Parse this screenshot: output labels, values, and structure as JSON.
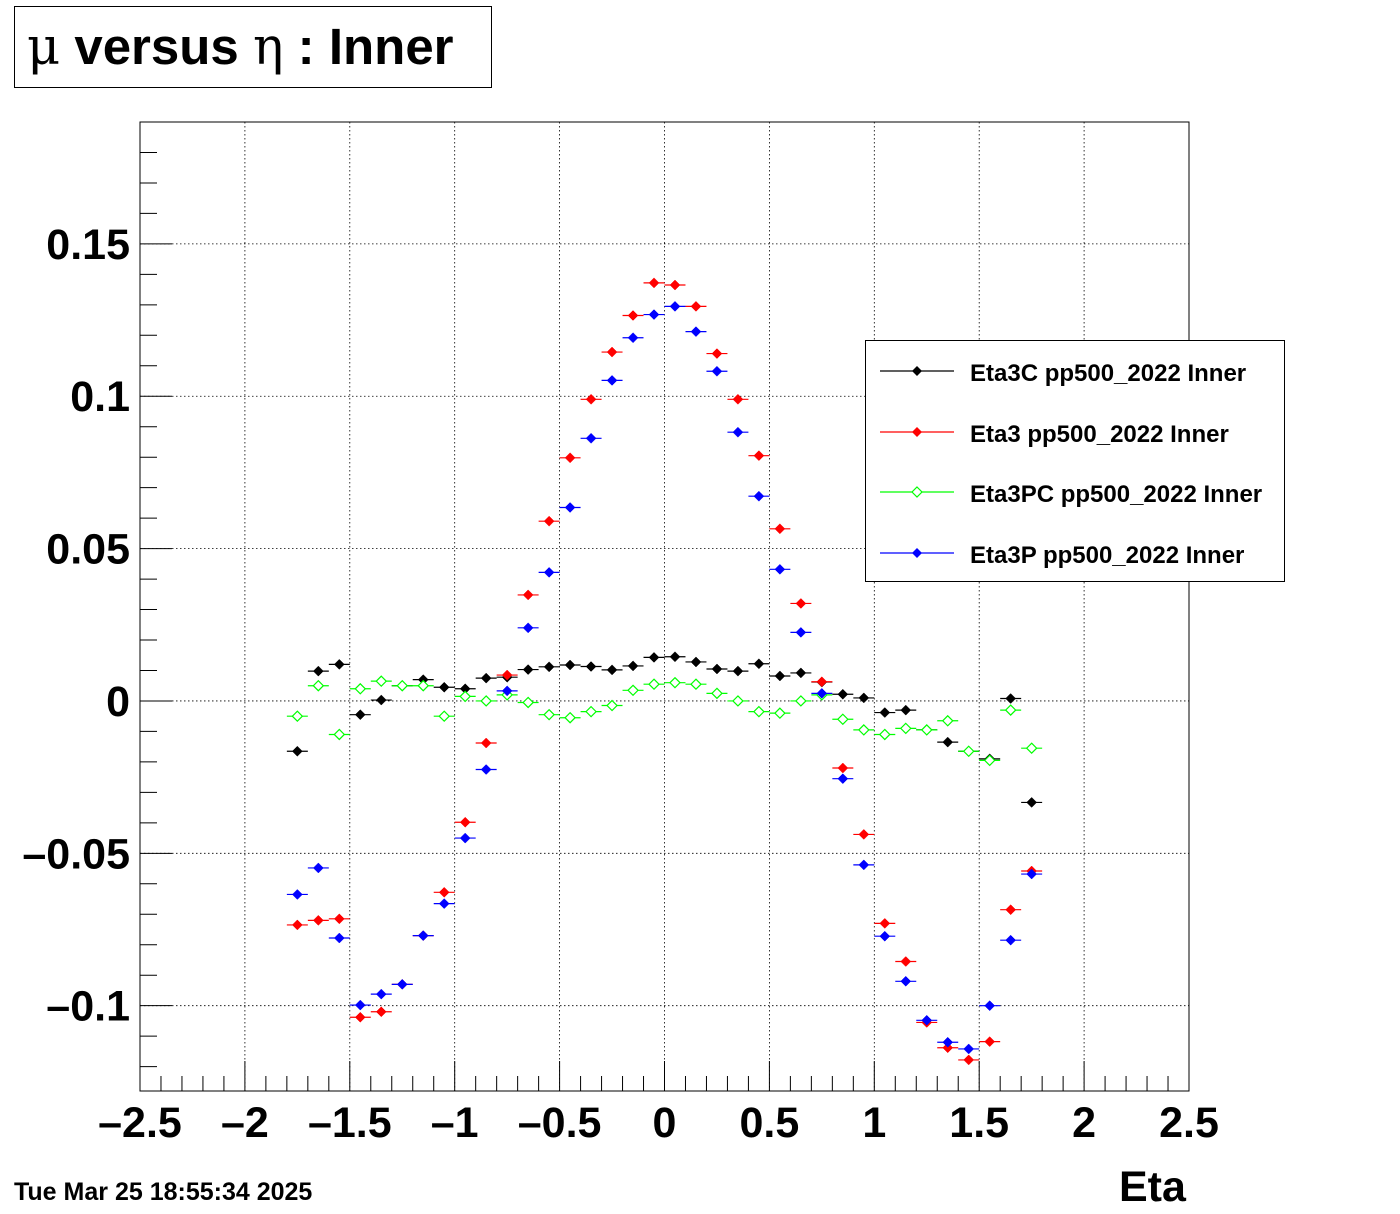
{
  "title": {
    "mu_symbol": "μ",
    "versus_text": " versus ",
    "eta_symbol": "η",
    "suffix_text": " : Inner"
  },
  "datestamp": "Tue Mar 25 18:55:34 2025",
  "chart_data": {
    "type": "scatter",
    "style": "points with horizontal error bars (bin width 0.1)",
    "title": "μ versus η : Inner",
    "xlabel": "Eta",
    "ylabel": "",
    "xlim": [
      -2.5,
      2.5
    ],
    "ylim": [
      -0.128,
      0.19
    ],
    "x_ticks": [
      -2.5,
      -2,
      -1.5,
      -1,
      -0.5,
      0,
      0.5,
      1,
      1.5,
      2,
      2.5
    ],
    "x_tick_labels": [
      "–2.5",
      "–2",
      "–1.5",
      "–1",
      "–0.5",
      "0",
      "0.5",
      "1",
      "1.5",
      "2",
      "2.5"
    ],
    "y_ticks": [
      -0.1,
      -0.05,
      0,
      0.05,
      0.1,
      0.15
    ],
    "y_tick_labels": [
      "–0.1",
      "–0.05",
      "0",
      "0.05",
      "0.1",
      "0.15"
    ],
    "grid": true,
    "legend_position": "right",
    "x": [
      -1.75,
      -1.65,
      -1.55,
      -1.45,
      -1.35,
      -1.25,
      -1.15,
      -1.05,
      -0.95,
      -0.85,
      -0.75,
      -0.65,
      -0.55,
      -0.45,
      -0.35,
      -0.25,
      -0.15,
      -0.05,
      0.05,
      0.15,
      0.25,
      0.35,
      0.45,
      0.55,
      0.65,
      0.75,
      0.85,
      0.95,
      1.05,
      1.15,
      1.25,
      1.35,
      1.45,
      1.55,
      1.65,
      1.75
    ],
    "series": [
      {
        "name": "Eta3C pp500_2022 Inner",
        "color": "#000000",
        "marker": "filled-diamond",
        "values": [
          -0.0165,
          0.0098,
          0.012,
          -0.0045,
          0.0003,
          0.005,
          0.007,
          0.0045,
          0.004,
          0.0075,
          0.0078,
          0.0103,
          0.0112,
          0.0118,
          0.0113,
          0.0102,
          0.0115,
          0.0143,
          0.0145,
          0.0128,
          0.0105,
          0.0098,
          0.0122,
          0.0082,
          0.0092,
          0.0062,
          0.0022,
          0.001,
          -0.0038,
          -0.003,
          -0.0095,
          -0.0135,
          -0.0165,
          -0.019,
          0.0008,
          -0.0333
        ]
      },
      {
        "name": "Eta3 pp500_2022 Inner",
        "color": "#ff0000",
        "marker": "filled-diamond",
        "values": [
          -0.0735,
          -0.072,
          -0.0715,
          -0.1038,
          -0.102,
          -0.093,
          -0.077,
          -0.0628,
          -0.0398,
          -0.0138,
          0.0085,
          0.0348,
          0.059,
          0.0798,
          0.099,
          0.1145,
          0.1265,
          0.1372,
          0.1365,
          0.1295,
          0.114,
          0.099,
          0.0805,
          0.0565,
          0.032,
          0.0063,
          -0.022,
          -0.0438,
          -0.073,
          -0.0855,
          -0.1055,
          -0.1138,
          -0.1178,
          -0.1118,
          -0.0685,
          -0.0558
        ]
      },
      {
        "name": "Eta3PC pp500_2022 Inner",
        "color": "#00ff00",
        "marker": "open-diamond",
        "values": [
          -0.005,
          0.005,
          -0.011,
          0.004,
          0.0065,
          0.005,
          0.005,
          -0.005,
          0.0015,
          0.0,
          0.002,
          -0.0005,
          -0.0045,
          -0.0055,
          -0.0035,
          -0.0015,
          0.0035,
          0.0055,
          0.006,
          0.0055,
          0.0025,
          0.0,
          -0.0035,
          -0.004,
          0.0,
          0.002,
          -0.006,
          -0.0095,
          -0.011,
          -0.009,
          -0.0095,
          -0.0065,
          -0.0165,
          -0.0195,
          -0.003,
          -0.0155
        ]
      },
      {
        "name": "Eta3P pp500_2022 Inner",
        "color": "#0000ff",
        "marker": "filled-diamond",
        "values": [
          -0.0635,
          -0.0548,
          -0.0778,
          -0.0998,
          -0.0962,
          -0.093,
          -0.077,
          -0.0665,
          -0.045,
          -0.0225,
          0.0033,
          0.024,
          0.0422,
          0.0635,
          0.0862,
          0.1052,
          0.1192,
          0.1268,
          0.1295,
          0.1212,
          0.1082,
          0.0882,
          0.0672,
          0.0432,
          0.0225,
          0.0025,
          -0.0255,
          -0.0538,
          -0.0772,
          -0.092,
          -0.1048,
          -0.112,
          -0.1142,
          -0.1,
          -0.0785,
          -0.0568
        ]
      }
    ]
  }
}
